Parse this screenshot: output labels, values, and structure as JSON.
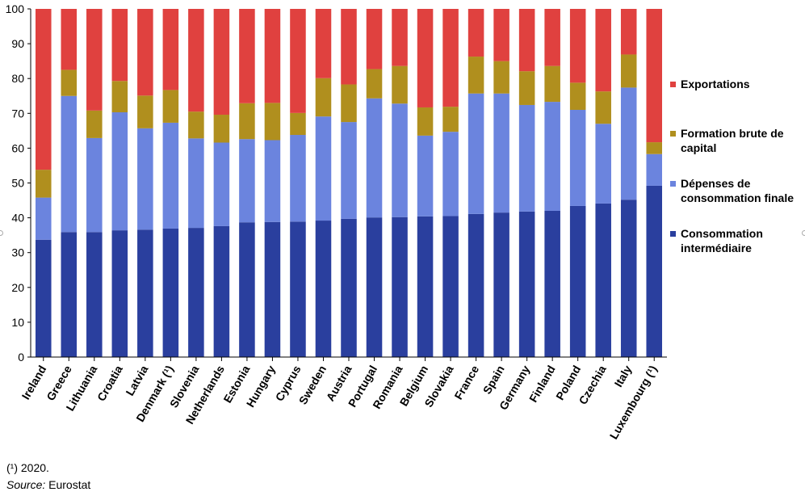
{
  "chart_data": {
    "type": "bar",
    "stacked": true,
    "title": "",
    "xlabel": "",
    "ylabel": "",
    "ylim": [
      0,
      100
    ],
    "yticks": [
      0,
      10,
      20,
      30,
      40,
      50,
      60,
      70,
      80,
      90,
      100
    ],
    "grid": false,
    "legend_position": "right",
    "categories": [
      "Ireland",
      "Greece",
      "Lithuania",
      "Croatia",
      "Latvia",
      "Denmark (¹)",
      "Slovenia",
      "Netherlands",
      "Estonia",
      "Hungary",
      "Cyprus",
      "Sweden",
      "Austria",
      "Portugal",
      "Romania",
      "Belgium",
      "Slovakia",
      "France",
      "Spain",
      "Germany",
      "Finland",
      "Poland",
      "Czechia",
      "Italy",
      "Luxembourg (¹)"
    ],
    "series": [
      {
        "name": "Consommation intermédiaire",
        "color": "#2a3f9e",
        "values": [
          33.7,
          35.9,
          35.9,
          36.4,
          36.6,
          36.9,
          37.1,
          37.6,
          38.7,
          38.8,
          38.9,
          39.2,
          39.7,
          40.1,
          40.2,
          40.4,
          40.5,
          41.1,
          41.5,
          41.8,
          42.0,
          43.4,
          44.1,
          45.2,
          49.2
        ]
      },
      {
        "name": "Dépenses de consommation finale",
        "color": "#6b84de",
        "values": [
          12.1,
          39.1,
          27.0,
          33.9,
          29.1,
          30.4,
          25.7,
          24.0,
          23.9,
          23.5,
          24.9,
          29.9,
          27.8,
          34.2,
          32.6,
          23.2,
          24.2,
          34.6,
          34.2,
          30.6,
          31.3,
          27.6,
          22.9,
          32.2,
          9.1
        ]
      },
      {
        "name": "Formation brute de capital",
        "color": "#b08f1e",
        "values": [
          8.0,
          7.5,
          7.9,
          9.0,
          9.4,
          9.4,
          7.7,
          8.0,
          10.3,
          10.7,
          6.3,
          11.0,
          10.8,
          8.4,
          10.8,
          8.1,
          7.2,
          10.6,
          9.3,
          9.7,
          10.3,
          7.8,
          9.3,
          9.5,
          3.4
        ]
      },
      {
        "name": "Exportations",
        "color": "#e0413f",
        "values": [
          46.2,
          17.5,
          29.2,
          20.7,
          24.9,
          23.3,
          29.5,
          30.4,
          27.1,
          27.0,
          29.9,
          19.9,
          21.7,
          17.3,
          16.4,
          28.3,
          28.1,
          13.7,
          15.0,
          17.9,
          16.4,
          21.2,
          23.7,
          13.1,
          38.3
        ]
      }
    ]
  },
  "legend": {
    "items": [
      {
        "label": "Exportations",
        "color": "#e0413f"
      },
      {
        "label": "Formation brute de capital",
        "color": "#b08f1e"
      },
      {
        "label": "Dépenses de consommation finale",
        "color": "#6b84de"
      },
      {
        "label": "Consommation intermédiaire",
        "color": "#2a3f9e"
      }
    ]
  },
  "footnote": "(¹) 2020.",
  "source": {
    "prefix": "Source:",
    "text": "Eurostat"
  }
}
